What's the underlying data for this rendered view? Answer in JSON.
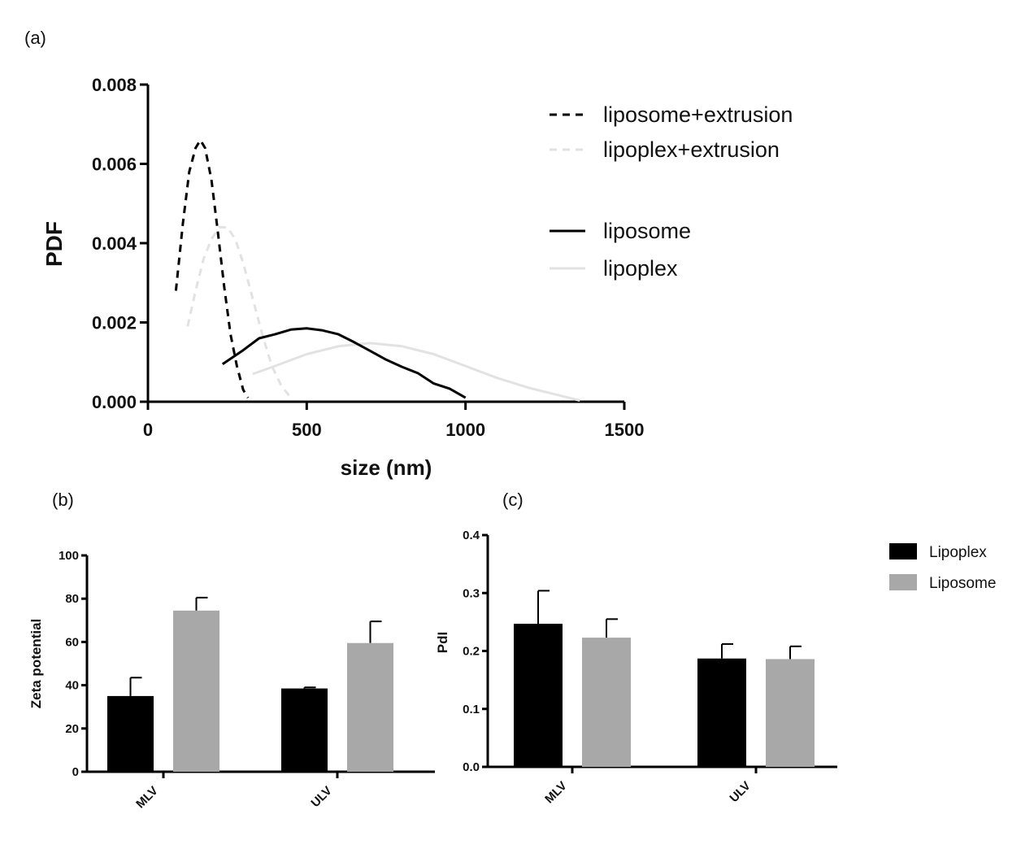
{
  "colors": {
    "black": "#000000",
    "light_grey": "#e2e2e2",
    "bar_grey": "#a8a8a8"
  },
  "chart_data": [
    {
      "panel": "(a)",
      "type": "line",
      "title": "",
      "xlabel": "size (nm)",
      "ylabel": "PDF",
      "xlim": [
        0,
        1500
      ],
      "ylim": [
        0,
        0.008
      ],
      "xticks": [
        0,
        500,
        1000,
        1500
      ],
      "yticks": [
        0.0,
        0.002,
        0.004,
        0.006,
        0.008
      ],
      "xtick_labels": [
        "0",
        "500",
        "1000",
        "1500"
      ],
      "ytick_labels": [
        "0.000",
        "0.002",
        "0.004",
        "0.006",
        "0.008"
      ],
      "legend_position": "top-right",
      "series": [
        {
          "name": "liposome+extrusion",
          "color": "#000000",
          "style": "dashed",
          "x": [
            88,
            110,
            130,
            150,
            165,
            180,
            200,
            220,
            240,
            260,
            280,
            300,
            315
          ],
          "y": [
            0.0028,
            0.0045,
            0.0058,
            0.0064,
            0.0066,
            0.0064,
            0.0056,
            0.0043,
            0.0029,
            0.0017,
            0.0009,
            0.0003,
            0.0001
          ]
        },
        {
          "name": "lipoplex+extrusion",
          "color": "#e2e2e2",
          "style": "dashed",
          "x": [
            125,
            150,
            175,
            200,
            225,
            250,
            275,
            300,
            330,
            360,
            390,
            420,
            450
          ],
          "y": [
            0.0019,
            0.0028,
            0.0036,
            0.0041,
            0.0044,
            0.0044,
            0.0041,
            0.0035,
            0.0026,
            0.0017,
            0.0009,
            0.0004,
            0.0001
          ]
        },
        {
          "name": "liposome",
          "color": "#000000",
          "style": "solid",
          "x": [
            235,
            300,
            350,
            400,
            450,
            500,
            550,
            600,
            650,
            700,
            750,
            800,
            850,
            900,
            950,
            1000
          ],
          "y": [
            0.00095,
            0.0013,
            0.0016,
            0.0017,
            0.00182,
            0.00185,
            0.0018,
            0.0017,
            0.0015,
            0.00128,
            0.00106,
            0.00088,
            0.00072,
            0.00046,
            0.00033,
            0.0001
          ]
        },
        {
          "name": "lipoplex",
          "color": "#e2e2e2",
          "style": "solid",
          "x": [
            330,
            400,
            500,
            600,
            700,
            800,
            900,
            1000,
            1100,
            1200,
            1300,
            1360
          ],
          "y": [
            0.0007,
            0.0009,
            0.0012,
            0.0014,
            0.00148,
            0.0014,
            0.0012,
            0.0009,
            0.0006,
            0.00035,
            0.00015,
            3e-05
          ]
        }
      ]
    },
    {
      "panel": "(b)",
      "type": "bar",
      "title": "",
      "xlabel": "",
      "ylabel": "Zeta potential",
      "ylim": [
        0,
        100
      ],
      "yticks": [
        0,
        20,
        40,
        60,
        80,
        100
      ],
      "ytick_labels": [
        "0",
        "20",
        "40",
        "60",
        "80",
        "100"
      ],
      "categories": [
        "MLV",
        "ULV"
      ],
      "series": [
        {
          "name": "Lipoplex",
          "color": "#000000",
          "values": [
            35,
            38.5
          ],
          "errors": [
            8.5,
            0.5
          ]
        },
        {
          "name": "Liposome",
          "color": "#a8a8a8",
          "values": [
            74.5,
            59.5
          ],
          "errors": [
            6.0,
            10.0
          ]
        }
      ]
    },
    {
      "panel": "(c)",
      "type": "bar",
      "title": "",
      "xlabel": "",
      "ylabel": "PdI",
      "ylim": [
        0,
        0.4
      ],
      "yticks": [
        0.0,
        0.1,
        0.2,
        0.3,
        0.4
      ],
      "ytick_labels": [
        "0.0",
        "0.1",
        "0.2",
        "0.3",
        "0.4"
      ],
      "categories": [
        "MLV",
        "ULV"
      ],
      "legend_position": "top-right",
      "series": [
        {
          "name": "Lipoplex",
          "color": "#000000",
          "values": [
            0.247,
            0.187
          ],
          "errors": [
            0.057,
            0.025
          ]
        },
        {
          "name": "Liposome",
          "color": "#a8a8a8",
          "values": [
            0.223,
            0.186
          ],
          "errors": [
            0.032,
            0.022
          ]
        }
      ]
    }
  ]
}
